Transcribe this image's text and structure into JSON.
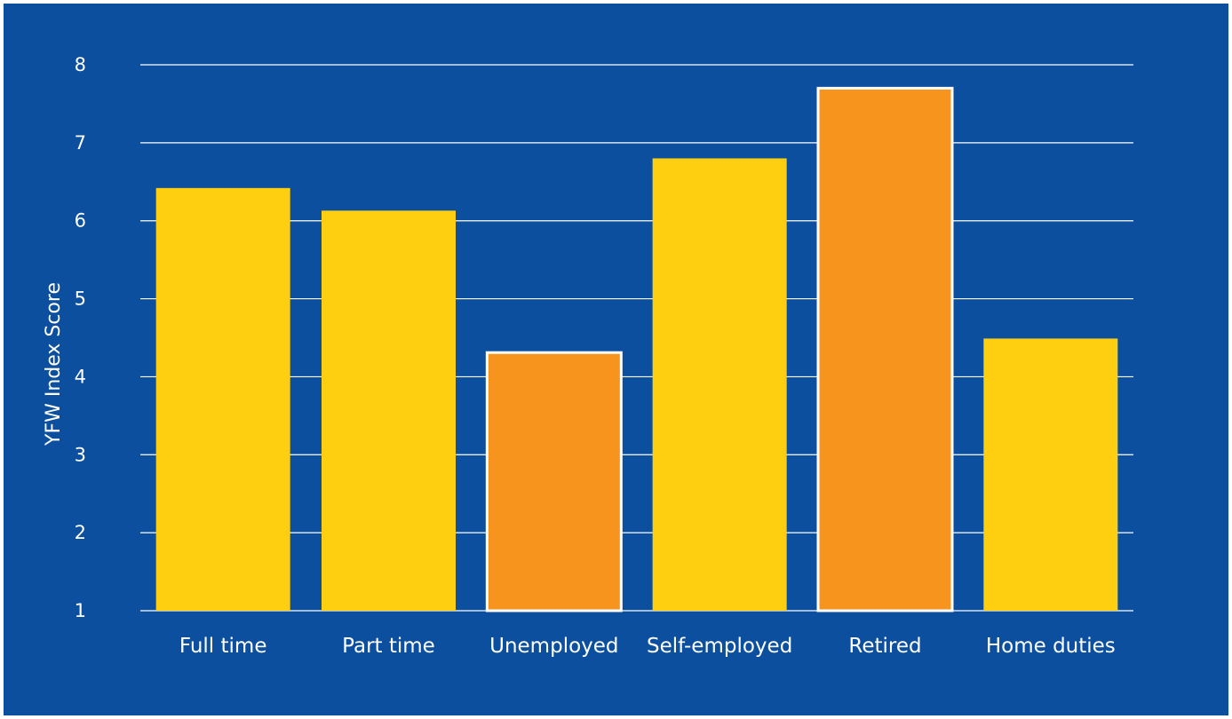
{
  "chart_data": {
    "type": "bar",
    "categories": [
      "Full time",
      "Part time",
      "Unemployed",
      "Self-employed",
      "Retired",
      "Home duties"
    ],
    "values": [
      6.42,
      6.13,
      4.31,
      6.8,
      7.7,
      4.49
    ],
    "highlighted": [
      false,
      false,
      true,
      false,
      true,
      false
    ],
    "title": "",
    "xlabel": "",
    "ylabel": "YFW Index Score",
    "ylim": [
      1,
      8
    ],
    "yticks": [
      1,
      2,
      3,
      4,
      5,
      6,
      7,
      8
    ],
    "grid": true,
    "legend": "none"
  },
  "colors": {
    "background": "#0b4f9e",
    "bar": "#fecf10",
    "bar_highlight": "#f7941d",
    "highlight_outline": "#ffffff",
    "grid": "#ffffff",
    "text": "#ffffff"
  }
}
